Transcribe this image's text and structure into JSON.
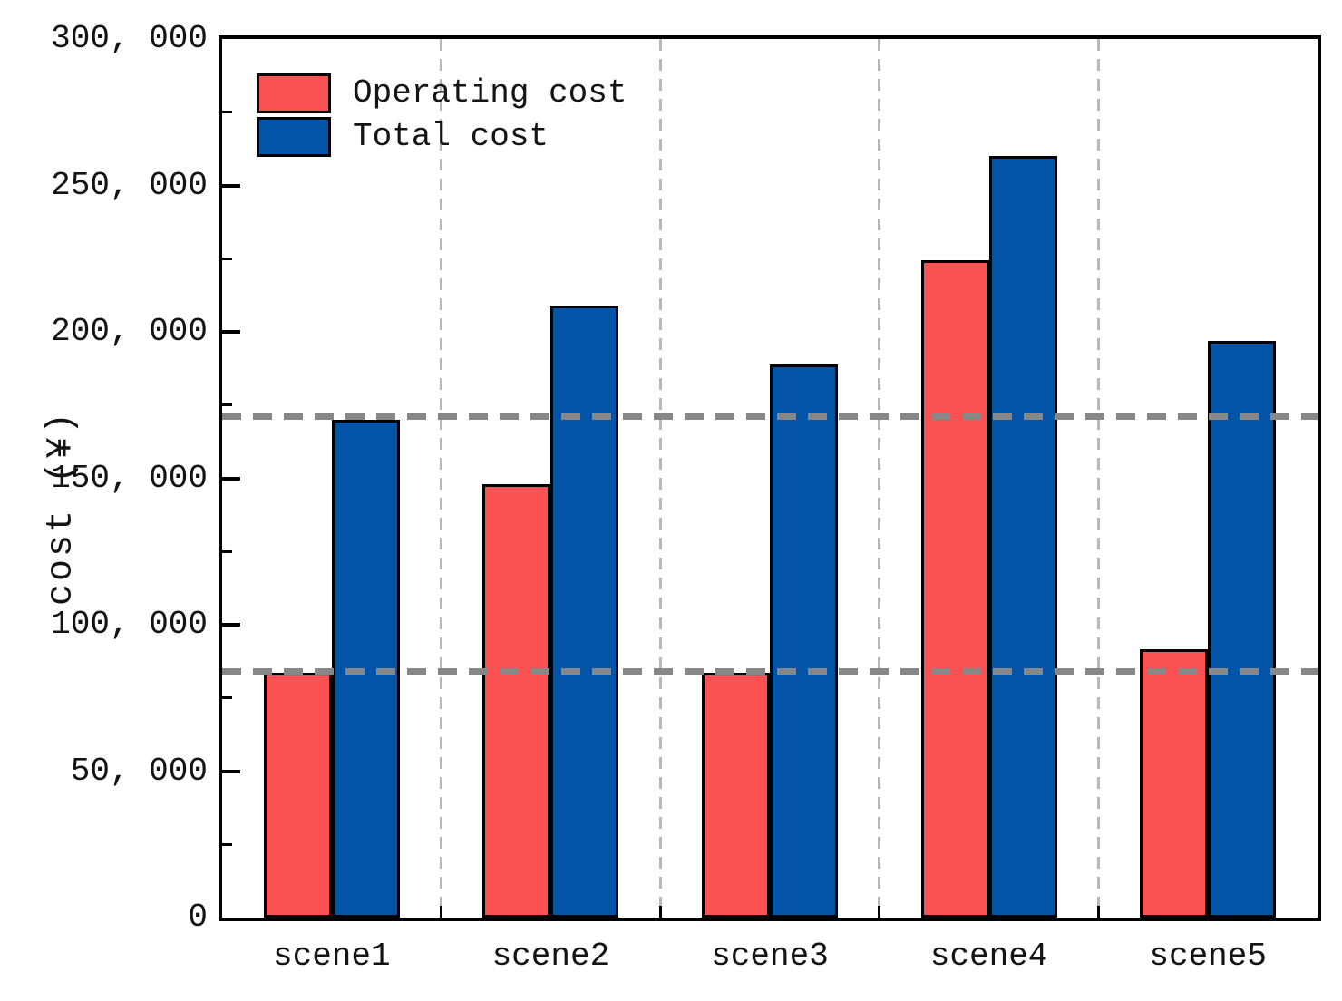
{
  "chart_data": {
    "type": "bar",
    "title": "",
    "xlabel": "",
    "ylabel": "cost (¥)",
    "categories": [
      "scene1",
      "scene2",
      "scene3",
      "scene4",
      "scene5"
    ],
    "series": [
      {
        "name": "Operating cost",
        "color": "#fa5153",
        "values": [
          83500,
          148000,
          83500,
          224500,
          91500
        ]
      },
      {
        "name": "Total cost",
        "color": "#0353a6",
        "values": [
          170000,
          209000,
          189000,
          260000,
          197000
        ]
      }
    ],
    "ylim": [
      0,
      300000
    ],
    "yticks": {
      "major_step": 50000,
      "minor_step": 25000,
      "labels": [
        "0",
        "50, 000",
        "100, 000",
        "150, 000",
        "200, 000",
        "250, 000",
        "300, 000"
      ]
    },
    "reference_lines": [
      {
        "value": 171000,
        "color": "#878787",
        "style": "dashed"
      },
      {
        "value": 84000,
        "color": "#878787",
        "style": "dashed"
      }
    ],
    "grid": {
      "vertical_category_dividers": true,
      "color": "#b8b8b8",
      "style": "dashed"
    },
    "legend": {
      "position": "top-left"
    }
  }
}
